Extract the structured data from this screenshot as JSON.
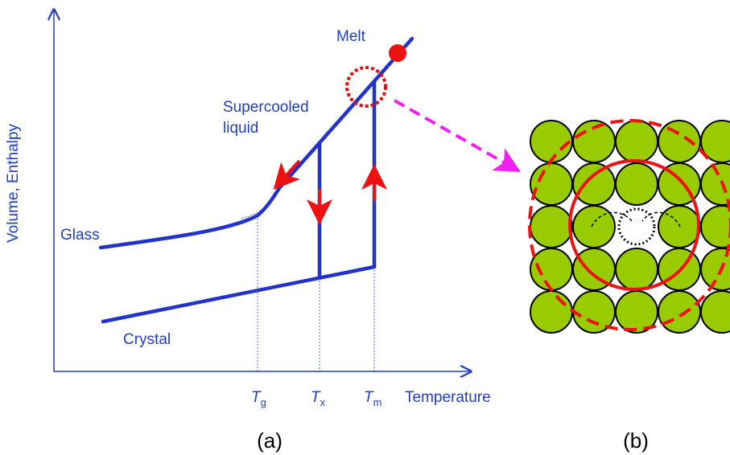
{
  "axes": {
    "y_label": "Volume, Enthalpy",
    "x_label": "Temperature"
  },
  "labels": {
    "melt": "Melt",
    "supercooled": [
      "Supercooled",
      "liquid"
    ],
    "glass": "Glass",
    "crystal": "Crystal"
  },
  "temperatures": [
    {
      "symbol": "T",
      "subscript": "g"
    },
    {
      "symbol": "T",
      "subscript": "x"
    },
    {
      "symbol": "T",
      "subscript": "m"
    }
  ],
  "captions": [
    "(a)",
    "(b)"
  ]
}
